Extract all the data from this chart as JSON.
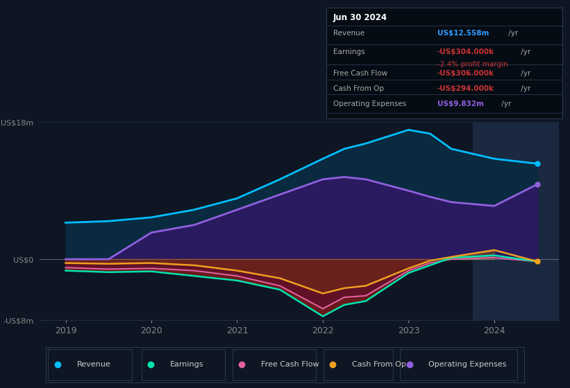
{
  "bg_color": "#0e1623",
  "plot_bg": "#0e1623",
  "title_date": "Jun 30 2024",
  "ylim": [
    -8,
    18
  ],
  "xlim": [
    2018.7,
    2024.75
  ],
  "years": [
    2019,
    2019.5,
    2020,
    2020.5,
    2021,
    2021.5,
    2022,
    2022.25,
    2022.5,
    2023,
    2023.25,
    2023.5,
    2024,
    2024.5
  ],
  "revenue": [
    4.8,
    5.0,
    5.5,
    6.5,
    8.0,
    10.5,
    13.2,
    14.5,
    15.2,
    17.0,
    16.5,
    14.5,
    13.2,
    12.558
  ],
  "operating_exp": [
    0.0,
    0.0,
    3.5,
    4.5,
    6.5,
    8.5,
    10.5,
    10.8,
    10.5,
    9.0,
    8.2,
    7.5,
    7.0,
    9.832
  ],
  "earnings": [
    -1.5,
    -1.7,
    -1.6,
    -2.2,
    -2.8,
    -4.0,
    -7.5,
    -6.0,
    -5.5,
    -1.8,
    -0.8,
    0.2,
    0.5,
    -0.304
  ],
  "free_cash_flow": [
    -1.1,
    -1.3,
    -1.2,
    -1.5,
    -2.2,
    -3.5,
    -6.5,
    -5.0,
    -4.8,
    -1.5,
    -0.5,
    0.0,
    0.2,
    -0.306
  ],
  "cash_from_op": [
    -0.5,
    -0.6,
    -0.5,
    -0.8,
    -1.5,
    -2.5,
    -4.5,
    -3.8,
    -3.5,
    -1.2,
    -0.2,
    0.3,
    1.2,
    -0.294
  ],
  "revenue_color": "#00bfff",
  "earnings_color": "#00e5b0",
  "fcf_color": "#e060a0",
  "cashop_color": "#f0a020",
  "opex_color": "#9060e0",
  "rev_fill_color": "#0a2a40",
  "opex_fill_color": "#2a1a60",
  "neg_fill_color": "#7a1a1a",
  "highlight_start": 2023.75,
  "highlight_end": 2024.75,
  "highlight_color": "#1a2840",
  "zero_line_color": "#888888",
  "grid_color": "#1e2e3e",
  "tick_color": "#888888",
  "legend_items": [
    {
      "label": "Revenue",
      "color": "#00bfff"
    },
    {
      "label": "Earnings",
      "color": "#00e5b0"
    },
    {
      "label": "Free Cash Flow",
      "color": "#e060a0"
    },
    {
      "label": "Cash From Op",
      "color": "#f0a020"
    },
    {
      "label": "Operating Expenses",
      "color": "#9060e0"
    }
  ],
  "info_rows": [
    {
      "label": "Revenue",
      "value": "US$12.558m",
      "unit": " /yr",
      "val_color": "#3399ff",
      "sub": null
    },
    {
      "label": "Earnings",
      "value": "-US$304.000k",
      "unit": " /yr",
      "val_color": "#cc3333",
      "sub": "-2.4% profit margin",
      "sub_color": "#cc3333"
    },
    {
      "label": "Free Cash Flow",
      "value": "-US$306.000k",
      "unit": " /yr",
      "val_color": "#cc3333",
      "sub": null
    },
    {
      "label": "Cash From Op",
      "value": "-US$294.000k",
      "unit": " /yr",
      "val_color": "#cc3333",
      "sub": null
    },
    {
      "label": "Operating Expenses",
      "value": "US$9.832m",
      "unit": " /yr",
      "val_color": "#9060e0",
      "sub": null
    }
  ]
}
